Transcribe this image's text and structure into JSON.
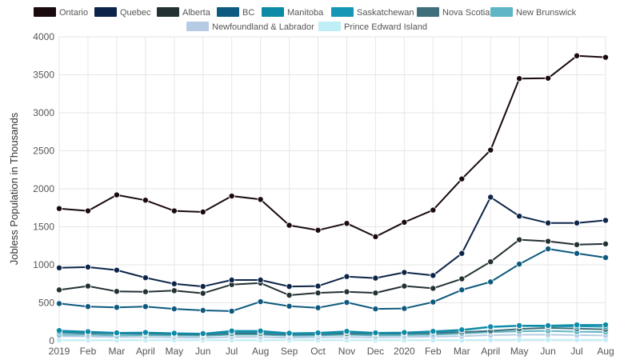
{
  "chart_data": {
    "type": "line",
    "title": "",
    "xlabel": "",
    "ylabel": "Jobless Population in Thousands",
    "ylim": [
      0,
      4000
    ],
    "yticks": [
      "0",
      "500",
      "1000",
      "1500",
      "2000",
      "2500",
      "3000",
      "3500",
      "4000"
    ],
    "grid": true,
    "legend_position": "top",
    "categories": [
      "2019",
      "Feb",
      "Mar",
      "April",
      "May",
      "Jun",
      "Jul",
      "Aug",
      "Sep",
      "Oct",
      "Nov",
      "Dec",
      "2020",
      "Feb",
      "Mar",
      "April",
      "May",
      "Jun",
      "Jul",
      "Aug"
    ],
    "series": [
      {
        "name": "Ontario",
        "color": "#1a0a0d",
        "values": [
          1740,
          1710,
          1920,
          1850,
          1710,
          1695,
          1905,
          1860,
          1520,
          1455,
          1545,
          1370,
          1560,
          1720,
          2130,
          2510,
          3450,
          3455,
          3750,
          3730
        ]
      },
      {
        "name": "Quebec",
        "color": "#0d2449",
        "values": [
          960,
          970,
          930,
          830,
          750,
          715,
          800,
          800,
          715,
          720,
          845,
          825,
          900,
          860,
          1150,
          1890,
          1640,
          1550,
          1550,
          1585
        ]
      },
      {
        "name": "Alberta",
        "color": "#233133",
        "values": [
          670,
          720,
          650,
          645,
          660,
          625,
          740,
          760,
          600,
          630,
          645,
          630,
          720,
          690,
          815,
          1040,
          1330,
          1310,
          1265,
          1275
        ]
      },
      {
        "name": "BC",
        "color": "#0d5a7e",
        "values": [
          490,
          450,
          440,
          450,
          420,
          400,
          390,
          515,
          455,
          435,
          505,
          420,
          425,
          510,
          670,
          775,
          1010,
          1210,
          1150,
          1095
        ]
      },
      {
        "name": "Manitoba",
        "color": "#0d8aa6",
        "values": [
          135,
          120,
          105,
          110,
          100,
          95,
          130,
          130,
          100,
          105,
          125,
          105,
          110,
          125,
          145,
          185,
          200,
          200,
          210,
          210
        ]
      },
      {
        "name": "Saskatchewan",
        "color": "#1497b4",
        "values": [
          115,
          115,
          100,
          105,
          95,
          90,
          115,
          115,
          90,
          95,
          115,
          100,
          105,
          115,
          140,
          180,
          195,
          190,
          190,
          185
        ]
      },
      {
        "name": "Nova Scotia",
        "color": "#3f6f7a",
        "values": [
          110,
          100,
          95,
          95,
          85,
          80,
          95,
          95,
          80,
          85,
          95,
          90,
          95,
          100,
          115,
          130,
          155,
          170,
          160,
          150
        ]
      },
      {
        "name": "New Brunswick",
        "color": "#5fb5c4",
        "values": [
          80,
          80,
          70,
          75,
          70,
          65,
          80,
          80,
          65,
          70,
          80,
          70,
          75,
          80,
          95,
          115,
          125,
          130,
          120,
          115
        ]
      },
      {
        "name": "Newfoundland & Labrador",
        "color": "#b6cce4",
        "values": [
          60,
          55,
          50,
          50,
          45,
          40,
          50,
          50,
          40,
          45,
          50,
          45,
          50,
          55,
          60,
          75,
          80,
          80,
          75,
          70
        ]
      },
      {
        "name": "Prince Edward Island",
        "color": "#bfeef7",
        "values": [
          10,
          10,
          10,
          10,
          10,
          10,
          10,
          10,
          10,
          10,
          10,
          10,
          10,
          10,
          10,
          12,
          15,
          15,
          14,
          14
        ]
      }
    ]
  }
}
